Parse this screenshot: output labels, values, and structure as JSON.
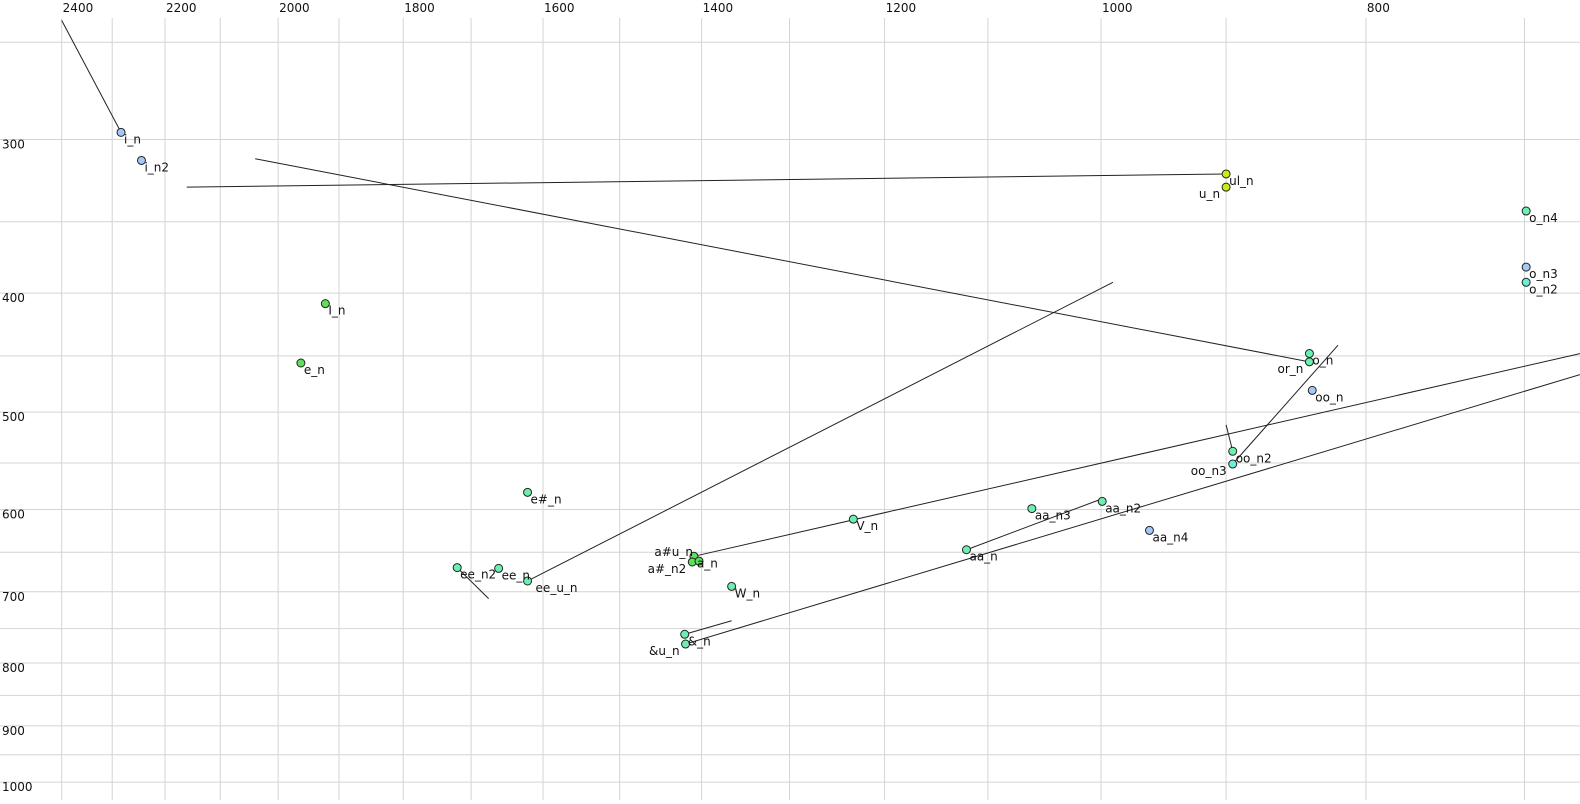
{
  "chart_data": {
    "type": "scatter",
    "title": "",
    "xlabel": "",
    "ylabel": "",
    "x_scale": "log",
    "y_scale": "log",
    "x_reversed": true,
    "x_axis_position": "top",
    "xlim": [
      2528,
      668
    ],
    "ylim": [
      231,
      1034
    ],
    "grid": true,
    "x_ticks": [
      2400,
      2200,
      2000,
      1800,
      1600,
      1400,
      1200,
      1000,
      800
    ],
    "y_ticks": [
      300,
      400,
      500,
      600,
      700,
      800,
      900,
      1000
    ],
    "x_grid": [
      2400,
      2300,
      2200,
      2100,
      2000,
      1900,
      1800,
      1700,
      1600,
      1500,
      1400,
      1300,
      1200,
      1100,
      1000,
      900,
      800,
      700
    ],
    "y_grid": [
      250,
      300,
      350,
      400,
      450,
      500,
      550,
      600,
      650,
      700,
      750,
      800,
      850,
      900,
      950,
      1000
    ],
    "colors": {
      "blue": "#a4c8f8",
      "yellowgreen": "#c8ee10",
      "green": "#5ee05a",
      "mint": "#6cf0b0",
      "cyan": "#6ceed8",
      "line": "#222222",
      "grid": "#d4d4d4"
    },
    "points": [
      {
        "label": "i_n",
        "x": 2283,
        "y": 296,
        "color": "blue",
        "trail": [
          2400,
          240
        ]
      },
      {
        "label": "i_n2",
        "x": 2244,
        "y": 312,
        "color": "blue"
      },
      {
        "label": "ul_n",
        "x": 900,
        "y": 320,
        "color": "yellowgreen",
        "trail": [
          2160,
          328
        ]
      },
      {
        "label": "u_n",
        "x": 900,
        "y": 328,
        "color": "yellowgreen"
      },
      {
        "label": "o_n4",
        "x": 699,
        "y": 343,
        "color": "mint"
      },
      {
        "label": "o_n3",
        "x": 699,
        "y": 381,
        "color": "blue"
      },
      {
        "label": "o_n2",
        "x": 699,
        "y": 392,
        "color": "cyan"
      },
      {
        "label": "I_n",
        "x": 1922,
        "y": 408,
        "color": "green"
      },
      {
        "label": "e_n",
        "x": 1962,
        "y": 456,
        "color": "green"
      },
      {
        "label": "o_n",
        "x": 839,
        "y": 448,
        "color": "mint"
      },
      {
        "label": "or_n",
        "x": 839,
        "y": 455,
        "color": "mint",
        "trail": [
          2039,
          311
        ]
      },
      {
        "label": "oo_n",
        "x": 837,
        "y": 480,
        "color": "blue"
      },
      {
        "label": "oo_n2",
        "x": 895,
        "y": 538,
        "color": "mint",
        "trail": [
          900,
          512
        ]
      },
      {
        "label": "oo_n3",
        "x": 895,
        "y": 551,
        "color": "cyan",
        "trail": [
          819,
          441
        ]
      },
      {
        "label": "e#_n",
        "x": 1621,
        "y": 581,
        "color": "mint"
      },
      {
        "label": "V_n",
        "x": 1232,
        "y": 611,
        "color": "mint"
      },
      {
        "label": "aa_n3",
        "x": 1060,
        "y": 599,
        "color": "mint"
      },
      {
        "label": "aa_n2",
        "x": 999,
        "y": 591,
        "color": "mint"
      },
      {
        "label": "aa_n4",
        "x": 960,
        "y": 624,
        "color": "blue"
      },
      {
        "label": "aa_n",
        "x": 1120,
        "y": 647,
        "color": "mint",
        "trail": [
          1001,
          589
        ]
      },
      {
        "label": "ee_n2",
        "x": 1720,
        "y": 669,
        "color": "mint",
        "trail": [
          1675,
          709
        ]
      },
      {
        "label": "ee_n",
        "x": 1661,
        "y": 670,
        "color": "mint"
      },
      {
        "label": "ee_u_n",
        "x": 1621,
        "y": 686,
        "color": "mint",
        "trail": [
          990,
          392
        ]
      },
      {
        "label": "a_n",
        "x": 1409,
        "y": 655,
        "color": "green",
        "trail": [
          668,
          448
        ]
      },
      {
        "label": "a#_n2",
        "x": 1411,
        "y": 662,
        "color": "green"
      },
      {
        "label": "a#u_n",
        "x": 1403,
        "y": 661,
        "color": "green"
      },
      {
        "label": "W_n",
        "x": 1365,
        "y": 693,
        "color": "mint"
      },
      {
        "label": "&_n",
        "x": 1420,
        "y": 758,
        "color": "mint",
        "trail": [
          1365,
          739
        ]
      },
      {
        "label": "&u_n",
        "x": 1419,
        "y": 772,
        "color": "mint",
        "trail": [
          668,
          466
        ]
      }
    ]
  }
}
